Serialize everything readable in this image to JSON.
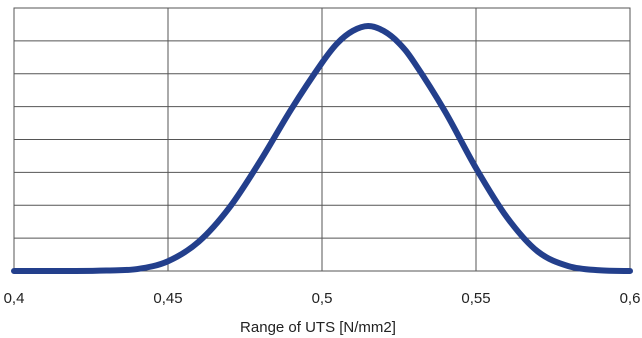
{
  "chart_data": {
    "type": "line",
    "title": "",
    "xlabel": "Range of UTS [N/mm2]",
    "ylabel": "",
    "xlim": [
      0.4,
      0.6
    ],
    "ylim": [
      0,
      1.0
    ],
    "x_ticks": [
      0.4,
      0.45,
      0.5,
      0.55,
      0.6
    ],
    "x_tick_labels": [
      "0,4",
      "0,45",
      "0,5",
      "0,55",
      "0,6"
    ],
    "y_gridlines": 8,
    "grid": true,
    "legend": "none",
    "series": [
      {
        "color": "#233f8c",
        "x": [
          0.4,
          0.42,
          0.43,
          0.44,
          0.45,
          0.46,
          0.47,
          0.48,
          0.49,
          0.5,
          0.505,
          0.51,
          0.515,
          0.52,
          0.525,
          0.53,
          0.54,
          0.55,
          0.56,
          0.57,
          0.58,
          0.59,
          0.6
        ],
        "y": [
          0.0,
          0.0,
          0.002,
          0.008,
          0.04,
          0.12,
          0.26,
          0.45,
          0.66,
          0.85,
          0.93,
          0.98,
          1.0,
          0.98,
          0.93,
          0.85,
          0.65,
          0.42,
          0.22,
          0.08,
          0.02,
          0.003,
          0.0
        ]
      }
    ]
  }
}
